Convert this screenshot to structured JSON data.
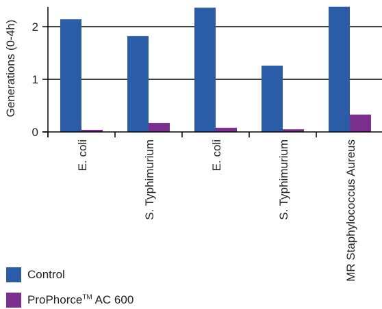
{
  "chart_data": {
    "type": "bar",
    "ylabel": "Generations (0-4h)",
    "xlabel": "",
    "ylim": [
      0,
      2.5
    ],
    "yticks": [
      0,
      1,
      2
    ],
    "grid": true,
    "legend_placement": "bottom-left",
    "categories": [
      "E. coli",
      "S. Typhimurium",
      "E. coli",
      "S. Typhimurium",
      "MR Staphylococcus Aureus"
    ],
    "series": [
      {
        "name": "Control",
        "color": "#2a5ca8",
        "values": [
          2.14,
          1.82,
          2.36,
          1.26,
          2.38
        ]
      },
      {
        "name": "ProPhorce AC 600",
        "color": "#7b2f8e",
        "values": [
          0.04,
          0.17,
          0.08,
          0.05,
          0.33
        ]
      }
    ]
  },
  "legend": {
    "control_label": "Control",
    "prophorce_label": "ProPhorce",
    "prophorce_tm": "TM",
    "prophorce_suffix": " AC 600"
  }
}
